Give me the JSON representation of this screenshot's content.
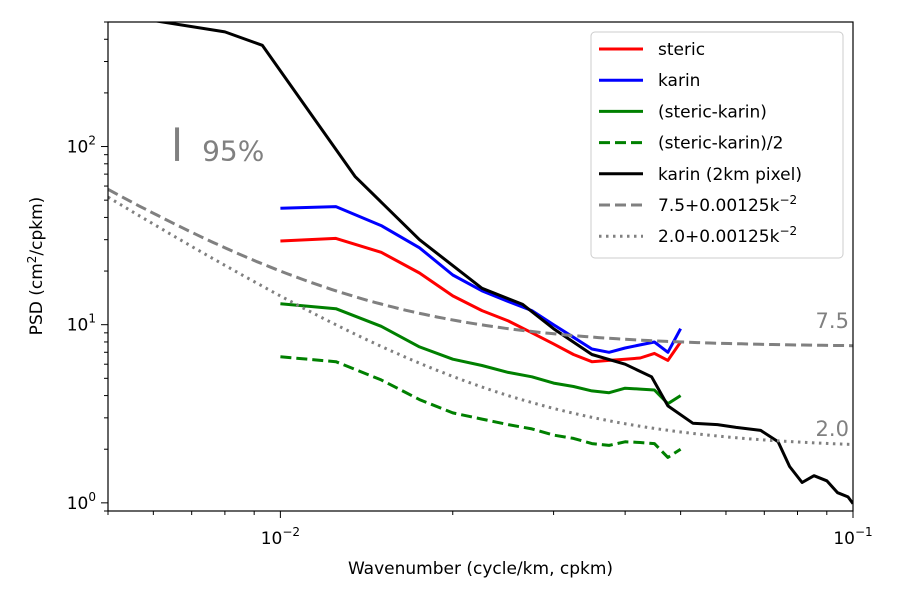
{
  "chart_data": {
    "type": "line",
    "xscale": "log",
    "yscale": "log",
    "xlim": [
      0.005,
      0.1
    ],
    "ylim": [
      0.9,
      500
    ],
    "xlabel": "Wavenumber (cycle/km, cpkm)",
    "ylabel_main": "PSD (cm",
    "ylabel_sup": "2",
    "ylabel_tail": "/cpkm)",
    "xticks": [
      {
        "value": 0.01,
        "base": "10",
        "exp": "−2"
      },
      {
        "value": 0.1,
        "base": "10",
        "exp": "−1"
      }
    ],
    "yticks": [
      {
        "value": 1,
        "base": "10",
        "exp": "0"
      },
      {
        "value": 10,
        "base": "10",
        "exp": "1"
      },
      {
        "value": 100,
        "base": "10",
        "exp": "2"
      }
    ],
    "annotations": [
      {
        "id": "ci",
        "text": "95%",
        "x": 0.0073,
        "y": 95,
        "color": "#808080"
      },
      {
        "id": "level75",
        "text": "7.5",
        "x": 0.092,
        "y": 10.5,
        "color": "#808080"
      },
      {
        "id": "level20",
        "text": "2.0",
        "x": 0.092,
        "y": 2.6,
        "color": "#808080"
      }
    ],
    "ci_bar": {
      "x": 0.0066,
      "y_low": 83,
      "y_high": 128,
      "color": "#808080"
    },
    "legend": {
      "position": "top-right"
    },
    "series": [
      {
        "name": "steric",
        "color": "#ff0000",
        "dash": "solid",
        "points": [
          [
            0.01,
            29.5
          ],
          [
            0.0125,
            30.5
          ],
          [
            0.015,
            25.5
          ],
          [
            0.0175,
            19.5
          ],
          [
            0.02,
            14.5
          ],
          [
            0.0225,
            12.0
          ],
          [
            0.025,
            10.5
          ],
          [
            0.0275,
            9.0
          ],
          [
            0.03,
            7.8
          ],
          [
            0.0325,
            6.8
          ],
          [
            0.035,
            6.2
          ],
          [
            0.0375,
            6.3
          ],
          [
            0.04,
            6.4
          ],
          [
            0.0425,
            6.5
          ],
          [
            0.045,
            6.9
          ],
          [
            0.0475,
            6.3
          ],
          [
            0.05,
            8.0
          ]
        ]
      },
      {
        "name": "karin",
        "color": "#0000ff",
        "dash": "solid",
        "points": [
          [
            0.01,
            45
          ],
          [
            0.0125,
            46
          ],
          [
            0.015,
            36
          ],
          [
            0.0175,
            27
          ],
          [
            0.02,
            19
          ],
          [
            0.0225,
            15.5
          ],
          [
            0.025,
            13.5
          ],
          [
            0.0275,
            12
          ],
          [
            0.03,
            10.0
          ],
          [
            0.0325,
            8.5
          ],
          [
            0.035,
            7.3
          ],
          [
            0.0375,
            7.0
          ],
          [
            0.04,
            7.4
          ],
          [
            0.0425,
            7.7
          ],
          [
            0.045,
            8.0
          ],
          [
            0.0475,
            7.0
          ],
          [
            0.05,
            9.5
          ]
        ]
      },
      {
        "name": "(steric-karin)",
        "color": "#008000",
        "dash": "solid",
        "points": [
          [
            0.01,
            13.1
          ],
          [
            0.0125,
            12.3
          ],
          [
            0.015,
            9.8
          ],
          [
            0.0175,
            7.5
          ],
          [
            0.02,
            6.4
          ],
          [
            0.0225,
            5.9
          ],
          [
            0.025,
            5.4
          ],
          [
            0.0275,
            5.1
          ],
          [
            0.03,
            4.7
          ],
          [
            0.0325,
            4.5
          ],
          [
            0.035,
            4.25
          ],
          [
            0.0375,
            4.15
          ],
          [
            0.04,
            4.4
          ],
          [
            0.0425,
            4.35
          ],
          [
            0.045,
            4.3
          ],
          [
            0.0475,
            3.6
          ],
          [
            0.05,
            4.0
          ]
        ]
      },
      {
        "name": "(steric-karin)/2",
        "color": "#008000",
        "dash": "dashed",
        "points": [
          [
            0.01,
            6.6
          ],
          [
            0.0125,
            6.2
          ],
          [
            0.015,
            4.9
          ],
          [
            0.0175,
            3.8
          ],
          [
            0.02,
            3.2
          ],
          [
            0.0225,
            2.95
          ],
          [
            0.025,
            2.75
          ],
          [
            0.0275,
            2.6
          ],
          [
            0.03,
            2.4
          ],
          [
            0.0325,
            2.3
          ],
          [
            0.035,
            2.15
          ],
          [
            0.0375,
            2.1
          ],
          [
            0.04,
            2.2
          ],
          [
            0.0425,
            2.18
          ],
          [
            0.045,
            2.15
          ],
          [
            0.0475,
            1.8
          ],
          [
            0.05,
            2.0
          ]
        ]
      },
      {
        "name": "karin (2km pixel)",
        "color": "#000000",
        "dash": "solid",
        "points": [
          [
            0.006,
            510
          ],
          [
            0.008,
            440
          ],
          [
            0.0093,
            370
          ],
          [
            0.0135,
            68
          ],
          [
            0.0175,
            30
          ],
          [
            0.0225,
            16
          ],
          [
            0.0265,
            13
          ],
          [
            0.03,
            9.5
          ],
          [
            0.035,
            6.8
          ],
          [
            0.04,
            6.0
          ],
          [
            0.0445,
            5.1
          ],
          [
            0.0475,
            3.5
          ],
          [
            0.0525,
            2.8
          ],
          [
            0.058,
            2.75
          ],
          [
            0.0625,
            2.65
          ],
          [
            0.069,
            2.55
          ],
          [
            0.074,
            2.2
          ],
          [
            0.0775,
            1.6
          ],
          [
            0.0815,
            1.3
          ],
          [
            0.0855,
            1.42
          ],
          [
            0.09,
            1.33
          ],
          [
            0.094,
            1.14
          ],
          [
            0.098,
            1.08
          ],
          [
            0.1,
            0.99
          ]
        ]
      },
      {
        "name": "7.5+0.00125k",
        "name_sup": "−2",
        "color": "#808080",
        "dash": "dashed",
        "formula": {
          "c": 7.5,
          "a": 0.00125,
          "p": -2
        }
      },
      {
        "name": "2.0+0.00125k",
        "name_sup": "−2",
        "color": "#808080",
        "dash": "dotted",
        "formula": {
          "c": 2.0,
          "a": 0.00125,
          "p": -2
        }
      }
    ]
  }
}
